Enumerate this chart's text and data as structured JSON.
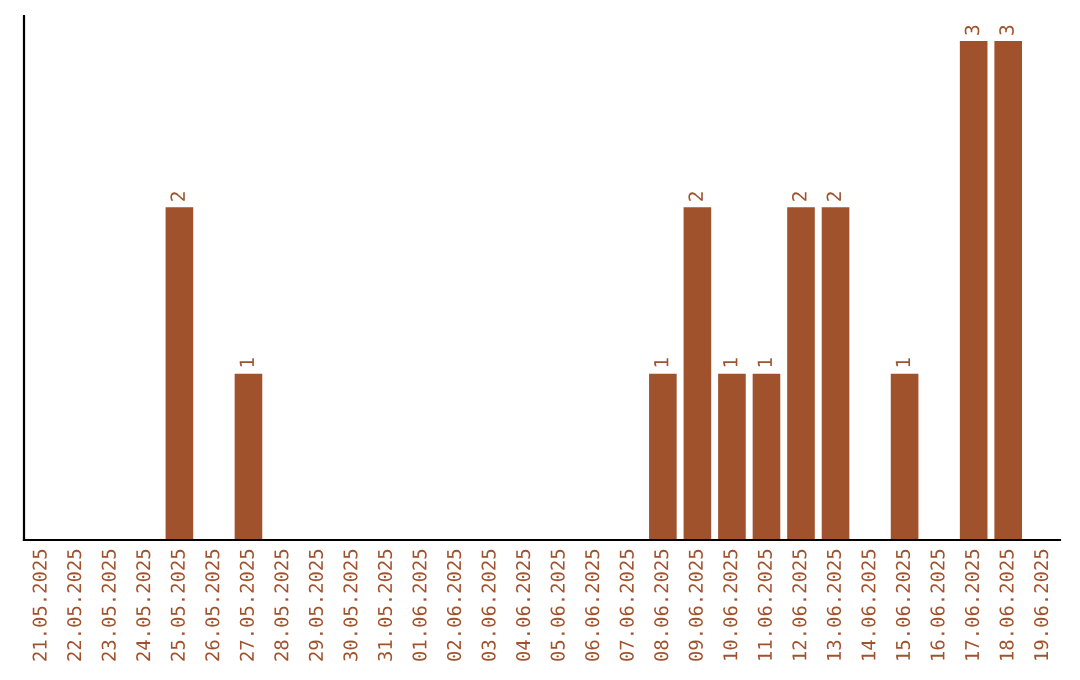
{
  "chart_data": {
    "type": "bar",
    "categories": [
      "21.05.2025",
      "22.05.2025",
      "23.05.2025",
      "24.05.2025",
      "25.05.2025",
      "26.05.2025",
      "27.05.2025",
      "28.05.2025",
      "29.05.2025",
      "30.05.2025",
      "31.05.2025",
      "01.06.2025",
      "02.06.2025",
      "03.06.2025",
      "04.06.2025",
      "05.06.2025",
      "06.06.2025",
      "07.06.2025",
      "08.06.2025",
      "09.06.2025",
      "10.06.2025",
      "11.06.2025",
      "12.06.2025",
      "13.06.2025",
      "14.06.2025",
      "15.06.2025",
      "16.06.2025",
      "17.06.2025",
      "18.06.2025",
      "19.06.2025"
    ],
    "values": [
      0,
      0,
      0,
      0,
      2,
      0,
      1,
      0,
      0,
      0,
      0,
      0,
      0,
      0,
      0,
      0,
      0,
      0,
      1,
      2,
      1,
      1,
      2,
      2,
      0,
      1,
      0,
      3,
      3,
      0
    ],
    "value_labels": [
      null,
      null,
      null,
      null,
      "2",
      null,
      "1",
      null,
      null,
      null,
      null,
      null,
      null,
      null,
      null,
      null,
      null,
      null,
      "1",
      "2",
      "1",
      "1",
      "2",
      "2",
      null,
      "1",
      null,
      "3",
      "3",
      null
    ],
    "color": "#a0522d",
    "ylim": [
      0,
      3.15
    ],
    "tick_labels": "x",
    "grid": false,
    "legend": false
  }
}
